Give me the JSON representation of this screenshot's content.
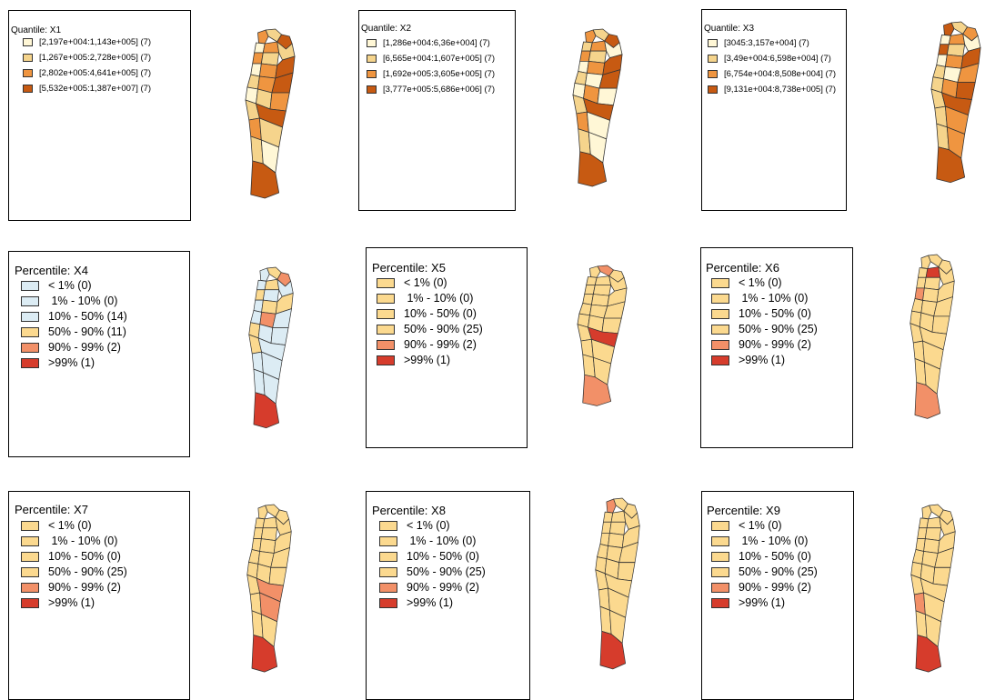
{
  "colors": {
    "q1": "#fff7d6",
    "q2": "#f5d48c",
    "q3": "#ef9540",
    "q4": "#c75a12",
    "lowblue": "#dcecf4",
    "mid": "#fbd98f",
    "high": "#f29068",
    "top": "#d63c2c"
  },
  "panels": [
    {
      "title": "Quantile: X1",
      "rows": [
        {
          "label": "[2,197e+004:1,143e+005] (7)",
          "color": "q1"
        },
        {
          "label": "[1,267e+005:2,728e+005] (7)",
          "color": "q2"
        },
        {
          "label": "[2,802e+005:4,641e+005] (7)",
          "color": "q3"
        },
        {
          "label": "[5,532e+005:1,387e+007] (7)",
          "color": "q4"
        }
      ]
    },
    {
      "title": "Quantile: X2",
      "rows": [
        {
          "label": "[1,286e+004:6,36e+004] (7)",
          "color": "q1"
        },
        {
          "label": "[6,565e+004:1,607e+005] (7)",
          "color": "q2"
        },
        {
          "label": "[1,692e+005:3,605e+005] (7)",
          "color": "q3"
        },
        {
          "label": "[3,777e+005:5,686e+006] (7)",
          "color": "q4"
        }
      ]
    },
    {
      "title": "Quantile: X3",
      "rows": [
        {
          "label": "[3045:3,157e+004] (7)",
          "color": "q1"
        },
        {
          "label": "[3,49e+004:6,598e+004] (7)",
          "color": "q2"
        },
        {
          "label": "[6,754e+004:8,508e+004] (7)",
          "color": "q3"
        },
        {
          "label": "[9,131e+004:8,738e+005] (7)",
          "color": "q4"
        }
      ]
    },
    {
      "title": "Percentile: X4",
      "rows": [
        {
          "label": "< 1% (0)",
          "color": "lowblue"
        },
        {
          "label": " 1% - 10% (0)",
          "color": "lowblue"
        },
        {
          "label": "10% - 50% (14)",
          "color": "lowblue"
        },
        {
          "label": "50% - 90% (11)",
          "color": "mid"
        },
        {
          "label": "90% - 99% (2)",
          "color": "high"
        },
        {
          "label": ">99% (1)",
          "color": "top"
        }
      ]
    },
    {
      "title": "Percentile: X5",
      "rows": [
        {
          "label": "< 1% (0)",
          "color": "mid"
        },
        {
          "label": " 1% - 10% (0)",
          "color": "mid"
        },
        {
          "label": "10% - 50% (0)",
          "color": "mid"
        },
        {
          "label": "50% - 90% (25)",
          "color": "mid"
        },
        {
          "label": "90% - 99% (2)",
          "color": "high"
        },
        {
          "label": ">99% (1)",
          "color": "top"
        }
      ]
    },
    {
      "title": "Percentile: X6",
      "rows": [
        {
          "label": "< 1% (0)",
          "color": "mid"
        },
        {
          "label": " 1% - 10% (0)",
          "color": "mid"
        },
        {
          "label": "10% - 50% (0)",
          "color": "mid"
        },
        {
          "label": "50% - 90% (25)",
          "color": "mid"
        },
        {
          "label": "90% - 99% (2)",
          "color": "high"
        },
        {
          "label": ">99% (1)",
          "color": "top"
        }
      ]
    },
    {
      "title": "Percentile: X7",
      "rows": [
        {
          "label": "< 1% (0)",
          "color": "mid"
        },
        {
          "label": " 1% - 10% (0)",
          "color": "mid"
        },
        {
          "label": "10% - 50% (0)",
          "color": "mid"
        },
        {
          "label": "50% - 90% (25)",
          "color": "mid"
        },
        {
          "label": "90% - 99% (2)",
          "color": "high"
        },
        {
          "label": ">99% (1)",
          "color": "top"
        }
      ]
    },
    {
      "title": "Percentile: X8",
      "rows": [
        {
          "label": "< 1% (0)",
          "color": "mid"
        },
        {
          "label": " 1% - 10% (0)",
          "color": "mid"
        },
        {
          "label": "10% - 50% (0)",
          "color": "mid"
        },
        {
          "label": "50% - 90% (25)",
          "color": "mid"
        },
        {
          "label": "90% - 99% (2)",
          "color": "high"
        },
        {
          "label": ">99% (1)",
          "color": "top"
        }
      ]
    },
    {
      "title": "Percentile: X9",
      "rows": [
        {
          "label": "< 1% (0)",
          "color": "mid"
        },
        {
          "label": " 1% - 10% (0)",
          "color": "mid"
        },
        {
          "label": "10% - 50% (0)",
          "color": "mid"
        },
        {
          "label": "50% - 90% (25)",
          "color": "mid"
        },
        {
          "label": "90% - 99% (2)",
          "color": "high"
        },
        {
          "label": ">99% (1)",
          "color": "top"
        }
      ]
    }
  ],
  "maps": [
    {
      "regions": [
        "q3",
        "q2",
        "q4",
        "q1",
        "q3",
        "q2",
        "q3",
        "q2",
        "q1",
        "q3",
        "q4",
        "q2",
        "q3",
        "q4",
        "q1",
        "q2",
        "q3",
        "q2",
        "q4",
        "q3",
        "q2",
        "q2",
        "q1",
        "q4"
      ]
    },
    {
      "regions": [
        "q3",
        "q2",
        "q4",
        "q2",
        "q3",
        "q1",
        "q3",
        "q2",
        "q1",
        "q3",
        "q4",
        "q2",
        "q1",
        "q4",
        "q1",
        "q3",
        "q1",
        "q2",
        "q4",
        "q3",
        "q1",
        "q2",
        "q1",
        "q4"
      ]
    },
    {
      "regions": [
        "q4",
        "q2",
        "q3",
        "q1",
        "q3",
        "q1",
        "q4",
        "q2",
        "q1",
        "q3",
        "q4",
        "q2",
        "q1",
        "q3",
        "q2",
        "q3",
        "q4",
        "q2",
        "q4",
        "q2",
        "q3",
        "q2",
        "q3",
        "q4"
      ]
    },
    {
      "regions": [
        "lowblue",
        "mid",
        "high",
        "lowblue",
        "mid",
        "lowblue",
        "mid",
        "lowblue",
        "lowblue",
        "mid",
        "mid",
        "lowblue",
        "high",
        "lowblue",
        "mid",
        "lowblue",
        "lowblue",
        "mid",
        "lowblue",
        "lowblue",
        "lowblue",
        "lowblue",
        "lowblue",
        "top"
      ]
    },
    {
      "regions": [
        "mid",
        "high",
        "mid",
        "mid",
        "mid",
        "mid",
        "mid",
        "mid",
        "mid",
        "mid",
        "mid",
        "mid",
        "mid",
        "mid",
        "mid",
        "mid",
        "mid",
        "mid",
        "top",
        "mid",
        "mid",
        "mid",
        "mid",
        "high"
      ]
    },
    {
      "regions": [
        "mid",
        "mid",
        "mid",
        "mid",
        "top",
        "mid",
        "mid",
        "mid",
        "high",
        "mid",
        "mid",
        "mid",
        "mid",
        "mid",
        "mid",
        "mid",
        "mid",
        "mid",
        "mid",
        "mid",
        "mid",
        "mid",
        "mid",
        "high"
      ]
    },
    {
      "regions": [
        "mid",
        "mid",
        "mid",
        "mid",
        "mid",
        "mid",
        "mid",
        "mid",
        "mid",
        "mid",
        "mid",
        "mid",
        "mid",
        "mid",
        "mid",
        "mid",
        "mid",
        "mid",
        "high",
        "mid",
        "high",
        "mid",
        "mid",
        "top"
      ]
    },
    {
      "regions": [
        "high",
        "mid",
        "mid",
        "mid",
        "mid",
        "mid",
        "mid",
        "mid",
        "mid",
        "mid",
        "mid",
        "mid",
        "mid",
        "mid",
        "mid",
        "mid",
        "mid",
        "mid",
        "mid",
        "mid",
        "mid",
        "mid",
        "mid",
        "top"
      ]
    },
    {
      "regions": [
        "mid",
        "mid",
        "mid",
        "mid",
        "mid",
        "mid",
        "mid",
        "mid",
        "mid",
        "mid",
        "mid",
        "mid",
        "mid",
        "mid",
        "mid",
        "mid",
        "mid",
        "mid",
        "mid",
        "high",
        "mid",
        "mid",
        "mid",
        "top"
      ]
    }
  ]
}
